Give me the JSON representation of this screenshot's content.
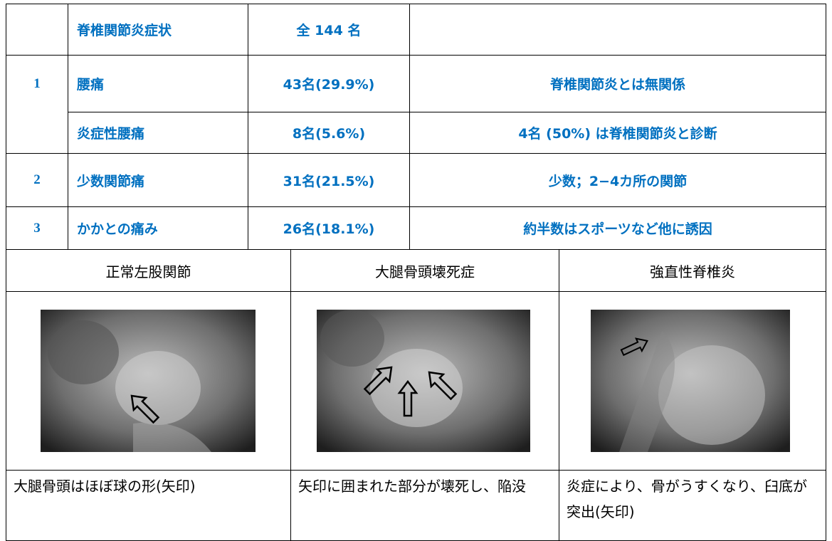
{
  "table1": {
    "header": [
      "脊椎関節炎症状",
      "全 144 名"
    ],
    "rows": [
      [
        "1",
        "腰痛",
        "43名(29.9%)",
        "脊椎関節炎とは無関係"
      ],
      [
        "",
        "炎症性腰痛",
        "8名(5.6%)",
        "4名 (50%) は脊椎関節炎と診断"
      ],
      [
        "2",
        "少数関節痛",
        "31名(21.5%)",
        "少数；2−4カ所の関節"
      ],
      [
        "3",
        "かかとの痛み",
        "26名(18.1%)",
        "約半数はスポーツなど他に誘因"
      ]
    ]
  },
  "table2": {
    "headings": [
      "正常左股関節",
      "大腿骨頭壊死症",
      "強直性脊椎炎"
    ],
    "captions": [
      "大腿骨頭はほぼ球の形(矢印)",
      "矢印に囲まれた部分が壊死し、陥没",
      "炎症により、骨がうすくなり、臼底が突出(矢印)"
    ]
  }
}
